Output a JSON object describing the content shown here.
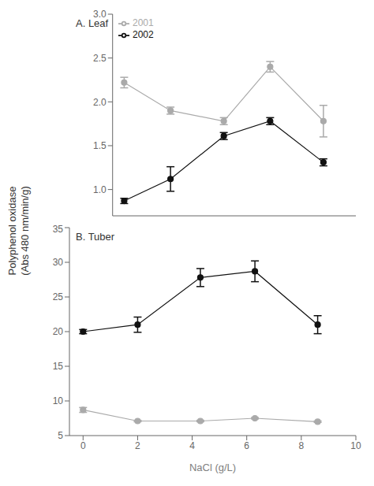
{
  "chart_data": [
    {
      "type": "line",
      "title": "A. Leaf",
      "ylabel": "Polyphenol oxidase\n(Abs 480 nm/min/g)",
      "x": [
        0,
        2,
        4.3,
        6.3,
        8.6
      ],
      "series": [
        {
          "name": "2001",
          "color": "#aaaaaa",
          "marker": "circle",
          "line_style": "solid",
          "values": [
            2.22,
            1.9,
            1.78,
            2.4,
            1.78
          ],
          "errors": [
            0.06,
            0.04,
            0.04,
            0.06,
            0.18
          ]
        },
        {
          "name": "2002",
          "color": "#111111",
          "marker": "circle",
          "line_style": "solid",
          "values": [
            0.87,
            1.12,
            1.61,
            1.78,
            1.31
          ],
          "errors": [
            0.03,
            0.14,
            0.04,
            0.04,
            0.04
          ]
        }
      ],
      "xlim": [
        -0.5,
        10
      ],
      "xticks": [
        0,
        2,
        4,
        6,
        8,
        10
      ],
      "ylim": [
        0.7,
        3.0
      ],
      "yticks": [
        {
          "value": 1.0,
          "label": "1.0"
        },
        1.5,
        {
          "value": 2.0,
          "label": "2.0"
        },
        2.5,
        {
          "value": 3.0,
          "label": "3.0"
        }
      ],
      "tick_labels": "y",
      "legend": "upper left",
      "grid": false
    },
    {
      "type": "line",
      "title": "B. Tuber",
      "xlabel": "NaCl (g/L)",
      "x": [
        0,
        2,
        4.3,
        6.3,
        8.6
      ],
      "series": [
        {
          "name": "2001",
          "color": "#aaaaaa",
          "marker": "circle",
          "line_style": "solid",
          "values": [
            8.7,
            7.1,
            7.1,
            7.5,
            7.0
          ],
          "errors": [
            0.35,
            0.1,
            0.1,
            0.1,
            0.1
          ]
        },
        {
          "name": "2002",
          "color": "#111111",
          "marker": "circle",
          "line_style": "solid",
          "values": [
            20.0,
            21.0,
            27.8,
            28.7,
            21.0
          ],
          "errors": [
            0.3,
            1.1,
            1.3,
            1.5,
            1.3
          ]
        }
      ],
      "xlim": [
        -0.5,
        10
      ],
      "xticks": [
        0,
        2,
        4,
        6,
        8,
        10
      ],
      "ylim": [
        5,
        35
      ],
      "yticks": [
        5,
        10,
        15,
        20,
        25,
        30,
        35
      ],
      "legend": false,
      "grid": false
    }
  ]
}
